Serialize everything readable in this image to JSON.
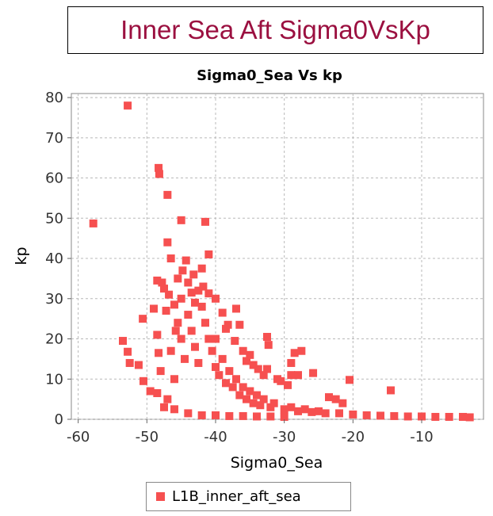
{
  "banner_title": "Inner Sea Aft Sigma0VsKp",
  "chart_data": {
    "type": "scatter",
    "title": "Sigma0_Sea Vs kp",
    "xlabel": "Sigma0_Sea",
    "ylabel": "kp",
    "xlim": [
      -61,
      -1
    ],
    "ylim": [
      0,
      81
    ],
    "xticks": [
      -60,
      -50,
      -40,
      -30,
      -20,
      -10
    ],
    "yticks": [
      0,
      10,
      20,
      30,
      40,
      50,
      60,
      70,
      80
    ],
    "grid": true,
    "legend_position": "bottom",
    "color": "#f65050",
    "series": [
      {
        "name": "L1B_inner_aft_sea",
        "points": [
          [
            -52.8,
            78
          ],
          [
            -57.8,
            48.7
          ],
          [
            -48.3,
            62.5
          ],
          [
            -48.2,
            61
          ],
          [
            -47,
            55.8
          ],
          [
            -45,
            49.5
          ],
          [
            -41.5,
            49.1
          ],
          [
            -53.5,
            19.5
          ],
          [
            -52.8,
            16.8
          ],
          [
            -52.5,
            14
          ],
          [
            -51.2,
            13.5
          ],
          [
            -50.5,
            9.5
          ],
          [
            -50.6,
            25
          ],
          [
            -47,
            44
          ],
          [
            -46.5,
            40
          ],
          [
            -41,
            41
          ],
          [
            -44.3,
            39.5
          ],
          [
            -42,
            37.5
          ],
          [
            -48.5,
            34.5
          ],
          [
            -47.8,
            34
          ],
          [
            -47.5,
            32.5
          ],
          [
            -44,
            34
          ],
          [
            -43.5,
            31.5
          ],
          [
            -42.5,
            32
          ],
          [
            -49,
            27.5
          ],
          [
            -46,
            28.5
          ],
          [
            -41,
            31.3
          ],
          [
            -40,
            30
          ],
          [
            -39,
            26.5
          ],
          [
            -37,
            27.5
          ],
          [
            -38.5,
            22.5
          ],
          [
            -38.2,
            23.5
          ],
          [
            -36.5,
            23.5
          ],
          [
            -48.5,
            21
          ],
          [
            -48.3,
            16.5
          ],
          [
            -45.8,
            22
          ],
          [
            -40,
            20
          ],
          [
            -37.2,
            19.5
          ],
          [
            -36,
            17
          ],
          [
            -35,
            16
          ],
          [
            -35.5,
            14.5
          ],
          [
            -34.5,
            13.5
          ],
          [
            -33.8,
            12.5
          ],
          [
            -33,
            11
          ],
          [
            -32.5,
            12.5
          ],
          [
            -31,
            10
          ],
          [
            -30.5,
            9.5
          ],
          [
            -29.5,
            8.5
          ],
          [
            -28.5,
            16.5
          ],
          [
            -27.5,
            17
          ],
          [
            -32.5,
            20.5
          ],
          [
            -32.3,
            18.5
          ],
          [
            -29,
            14
          ],
          [
            -29,
            11
          ],
          [
            -28,
            11
          ],
          [
            -25.8,
            11.5
          ],
          [
            -23.5,
            5.5
          ],
          [
            -22.5,
            5
          ],
          [
            -21.5,
            4
          ],
          [
            -20.5,
            9.8
          ],
          [
            -14.5,
            7.2
          ],
          [
            -49.5,
            7
          ],
          [
            -48.5,
            6.5
          ],
          [
            -48,
            12
          ],
          [
            -47,
            5
          ],
          [
            -46.5,
            17
          ],
          [
            -46,
            10
          ],
          [
            -45.5,
            24
          ],
          [
            -45,
            20
          ],
          [
            -44.5,
            15
          ],
          [
            -44,
            26
          ],
          [
            -43.5,
            22
          ],
          [
            -43,
            18
          ],
          [
            -42.5,
            14
          ],
          [
            -42,
            28
          ],
          [
            -41.5,
            24
          ],
          [
            -41,
            20
          ],
          [
            -40.5,
            17
          ],
          [
            -40,
            13
          ],
          [
            -39.5,
            11
          ],
          [
            -39,
            15
          ],
          [
            -38.5,
            9
          ],
          [
            -38,
            12
          ],
          [
            -37.5,
            8
          ],
          [
            -37,
            10
          ],
          [
            -36.5,
            6
          ],
          [
            -36,
            8
          ],
          [
            -35.5,
            5
          ],
          [
            -35,
            7
          ],
          [
            -34.5,
            4
          ],
          [
            -34,
            6
          ],
          [
            -33.5,
            3.5
          ],
          [
            -33,
            5
          ],
          [
            -32,
            3
          ],
          [
            -31.5,
            4
          ],
          [
            -30,
            2.5
          ],
          [
            -29,
            3
          ],
          [
            -28,
            2
          ],
          [
            -27,
            2.5
          ],
          [
            -26,
            1.8
          ],
          [
            -25,
            2
          ],
          [
            -24,
            1.5
          ],
          [
            -22,
            1.5
          ],
          [
            -20,
            1.2
          ],
          [
            -18,
            1
          ],
          [
            -16,
            0.9
          ],
          [
            -14,
            0.8
          ],
          [
            -12,
            0.7
          ],
          [
            -10,
            0.7
          ],
          [
            -8,
            0.6
          ],
          [
            -6,
            0.6
          ],
          [
            -4,
            0.6
          ],
          [
            -3,
            0.5
          ],
          [
            -47.5,
            3
          ],
          [
            -46,
            2.5
          ],
          [
            -44,
            1.5
          ],
          [
            -42,
            1
          ],
          [
            -40,
            1
          ],
          [
            -38,
            0.8
          ],
          [
            -36,
            0.8
          ],
          [
            -34,
            0.7
          ],
          [
            -32,
            0.7
          ],
          [
            -30,
            0.6
          ],
          [
            -45.5,
            35
          ],
          [
            -44.8,
            37
          ],
          [
            -43.2,
            36
          ],
          [
            -45,
            30
          ],
          [
            -43,
            29
          ],
          [
            -41.8,
            33
          ],
          [
            -46.8,
            31
          ],
          [
            -47.2,
            27
          ]
        ]
      }
    ]
  }
}
